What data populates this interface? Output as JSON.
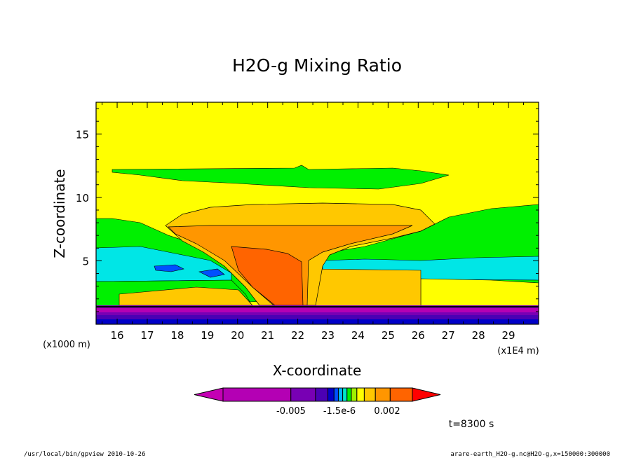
{
  "chart_data": {
    "type": "heatmap",
    "title": "H2O-g Mixing Ratio",
    "xlabel": "X-coordinate",
    "ylabel": "Z-coordinate",
    "x_unit": "(x1E4 m)",
    "y_unit": "(x1000 m)",
    "xlim": [
      15.3,
      30.0
    ],
    "ylim": [
      0.0,
      17.5
    ],
    "x_ticks": [
      "16",
      "17",
      "18",
      "19",
      "20",
      "21",
      "22",
      "23",
      "24",
      "25",
      "26",
      "27",
      "28",
      "29"
    ],
    "y_ticks": [
      "5",
      "10",
      "15"
    ],
    "colorbar_labels": [
      "-0.005",
      "-1.5e-6",
      "0.002"
    ],
    "colorbar_colors": [
      "#c400b4",
      "#b400b4",
      "#7800b4",
      "#4b00b4",
      "#0000c8",
      "#0050ff",
      "#00b4ff",
      "#00e6c8",
      "#00f000",
      "#a0f000",
      "#ffff00",
      "#ffc800",
      "#ff9600",
      "#ff6400",
      "#ff0000"
    ],
    "time_label": "t=8300 s",
    "grid": false
  },
  "footer": {
    "left": "/usr/local/bin/gpview  2010-10-26",
    "right": "arare-earth_H2O-g.nc@H2O-g,x=150000:300000"
  }
}
